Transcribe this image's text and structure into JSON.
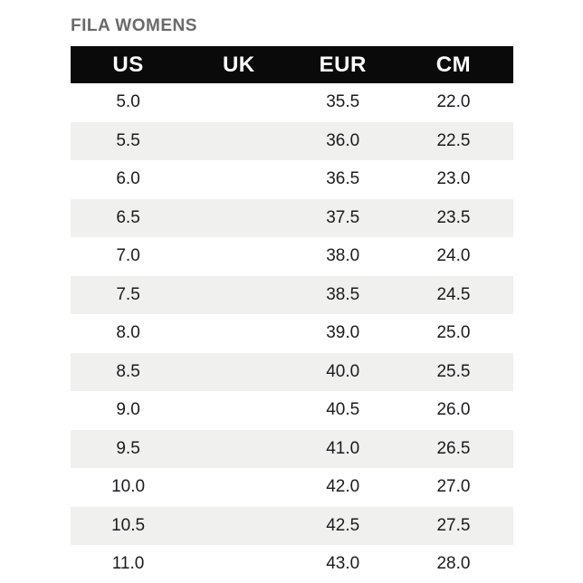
{
  "chart_data": {
    "type": "table",
    "title": "FILA WOMENS",
    "columns": [
      "US",
      "UK",
      "EUR",
      "CM"
    ],
    "rows": [
      [
        "5.0",
        "",
        "35.5",
        "22.0"
      ],
      [
        "5.5",
        "",
        "36.0",
        "22.5"
      ],
      [
        "6.0",
        "",
        "36.5",
        "23.0"
      ],
      [
        "6.5",
        "",
        "37.5",
        "23.5"
      ],
      [
        "7.0",
        "",
        "38.0",
        "24.0"
      ],
      [
        "7.5",
        "",
        "38.5",
        "24.5"
      ],
      [
        "8.0",
        "",
        "39.0",
        "25.0"
      ],
      [
        "8.5",
        "",
        "40.0",
        "25.5"
      ],
      [
        "9.0",
        "",
        "40.5",
        "26.0"
      ],
      [
        "9.5",
        "",
        "41.0",
        "26.5"
      ],
      [
        "10.0",
        "",
        "42.0",
        "27.0"
      ],
      [
        "10.5",
        "",
        "42.5",
        "27.5"
      ],
      [
        "11.0",
        "",
        "43.0",
        "28.0"
      ]
    ],
    "layout_hints": {
      "striped": true,
      "stripe_pattern": "odd-rows-white-even-rows-gray",
      "header_style": "solid-black-bar",
      "grid_lines": false
    }
  },
  "colors": {
    "header_bg": "#0a0a0a",
    "header_text": "#ffffff",
    "row_bg": "#ffffff",
    "row_alt_bg": "#f0f0ef",
    "cell_text": "#1b1b1f",
    "title_text": "#6a6a6a",
    "page_bg": "#ffffff"
  }
}
